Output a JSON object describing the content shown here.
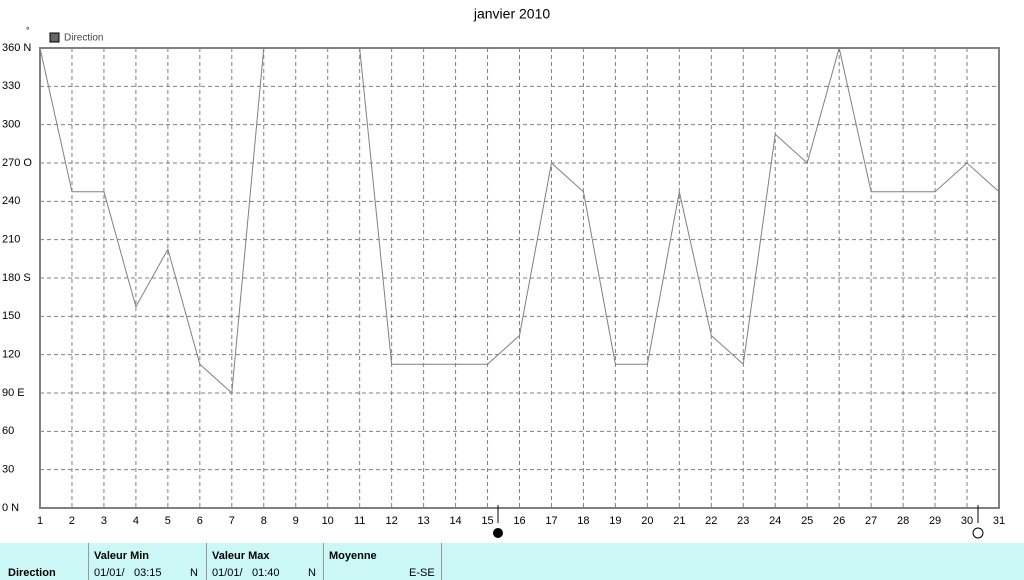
{
  "chart_data": {
    "type": "line",
    "title": "janvier 2010",
    "y_unit": "°",
    "x": [
      1,
      2,
      3,
      4,
      5,
      6,
      7,
      8,
      9,
      10,
      11,
      12,
      13,
      14,
      15,
      16,
      17,
      18,
      19,
      20,
      21,
      22,
      23,
      24,
      25,
      26,
      27,
      28,
      29,
      30,
      31
    ],
    "series": [
      {
        "name": "Direction",
        "color": "#808080",
        "values": [
          360,
          247.5,
          247.5,
          157.5,
          202.5,
          112.5,
          90,
          360,
          360,
          360,
          360,
          112.5,
          112.5,
          112.5,
          112.5,
          135,
          270,
          247.5,
          112.5,
          112.5,
          247.5,
          135,
          112.5,
          292.5,
          270,
          360,
          247.5,
          247.5,
          247.5,
          270,
          247.5
        ]
      }
    ],
    "xlim": [
      1,
      31
    ],
    "xticks": [
      1,
      2,
      3,
      4,
      5,
      6,
      7,
      8,
      9,
      10,
      11,
      12,
      13,
      14,
      15,
      16,
      17,
      18,
      19,
      20,
      21,
      22,
      23,
      24,
      25,
      26,
      27,
      28,
      29,
      30,
      31
    ],
    "ylim": [
      0,
      360
    ],
    "yticks": [
      {
        "value": 0,
        "label": "0 N"
      },
      30,
      60,
      {
        "value": 90,
        "label": "90  E"
      },
      120,
      150,
      {
        "value": 180,
        "label": "180 S"
      },
      210,
      240,
      {
        "value": 270,
        "label": "270 O"
      },
      300,
      330,
      {
        "value": 360,
        "label": "360 N"
      }
    ],
    "grid": true
  },
  "summary": {
    "label": "Direction",
    "min": {
      "header": "Valeur Min",
      "date": "01/01/",
      "time": "03:15",
      "dir": "N"
    },
    "max": {
      "header": "Valeur Max",
      "date": "01/01/",
      "time": "01:40",
      "dir": "N"
    },
    "mean": {
      "header": "Moyenne",
      "value": "E-SE"
    }
  }
}
